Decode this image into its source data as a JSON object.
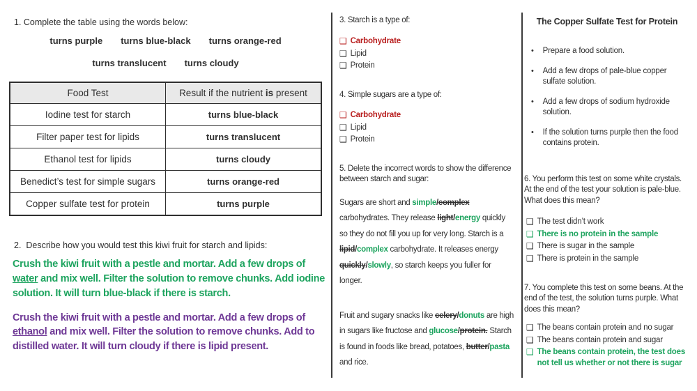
{
  "colors": {
    "green": "#1ea45f",
    "red": "#b92020",
    "purple": "#6f3996",
    "table_header_bg": "#e9e9e9"
  },
  "q1": {
    "prompt": "1. Complete the table using the words below:",
    "word_bank_line1": [
      "turns purple",
      "turns blue-black",
      "turns orange-red"
    ],
    "word_bank_line2": [
      "turns translucent",
      "turns cloudy"
    ],
    "table": {
      "header_col1": "Food Test",
      "header_col2_segments": [
        {
          "t": "Result if the nutrient "
        },
        {
          "t": "is",
          "s": "b"
        },
        {
          "t": " present"
        }
      ],
      "rows": [
        {
          "test": "Iodine test for starch",
          "result": "turns blue-black"
        },
        {
          "test": "Filter paper test for lipids",
          "result": "turns translucent"
        },
        {
          "test": "Ethanol test for lipids",
          "result": "turns cloudy"
        },
        {
          "test": "Benedict’s test for simple sugars",
          "result": "turns orange-red"
        },
        {
          "test": "Copper sulfate test for protein",
          "result": "turns purple"
        }
      ]
    }
  },
  "q2": {
    "prompt": "2.  Describe how you would test this kiwi fruit for starch and lipids:",
    "answer_starch_segments": [
      {
        "t": "Crush the kiwi fruit with a pestle and mortar. Add a few drops of "
      },
      {
        "t": "water",
        "s": "u"
      },
      {
        "t": " and mix well. Filter the solution to remove chunks. Add iodine solution. It will turn blue-black if there is starch."
      }
    ],
    "answer_lipid_segments": [
      {
        "t": "Crush the kiwi fruit with a pestle and mortar. Add a few drops of "
      },
      {
        "t": "ethanol",
        "s": "u"
      },
      {
        "t": " and mix well. Filter the solution to remove chunks. Add to distilled water. It will turn cloudy if there is lipid present."
      }
    ]
  },
  "q3": {
    "prompt": "3. Starch is a type of:",
    "options": [
      {
        "label": "Carbohydrate",
        "cls": "red"
      },
      {
        "label": "Lipid",
        "cls": ""
      },
      {
        "label": "Protein",
        "cls": ""
      }
    ]
  },
  "q4": {
    "prompt": "4. Simple sugars are a type of:",
    "options": [
      {
        "label": "Carbohydrate",
        "cls": "red"
      },
      {
        "label": "Lipid",
        "cls": ""
      },
      {
        "label": "Protein",
        "cls": ""
      }
    ]
  },
  "q5": {
    "prompt": "5. Delete the incorrect words to show the difference between starch and sugar:",
    "para1_segments": [
      {
        "t": "Sugars are short and "
      },
      {
        "t": "simple",
        "s": "g"
      },
      {
        "t": "/",
        "s": "b"
      },
      {
        "t": "complex",
        "s": "x"
      },
      {
        "t": " carbohydrates. They release "
      },
      {
        "t": "light",
        "s": "x"
      },
      {
        "t": "/",
        "s": "b"
      },
      {
        "t": "energy",
        "s": "g"
      },
      {
        "t": " quickly so they do not fill you up for very long. Starch is a "
      },
      {
        "t": "lipid",
        "s": "x"
      },
      {
        "t": "/",
        "s": "b"
      },
      {
        "t": "complex",
        "s": "g"
      },
      {
        "t": " carbohydrate. It releases energy "
      },
      {
        "t": "quickly",
        "s": "x"
      },
      {
        "t": "/",
        "s": "b"
      },
      {
        "t": "slowly",
        "s": "g"
      },
      {
        "t": ", so starch keeps you fuller for longer."
      }
    ],
    "para2_segments": [
      {
        "t": "Fruit and sugary snacks like "
      },
      {
        "t": "celery",
        "s": "x"
      },
      {
        "t": "/",
        "s": "b"
      },
      {
        "t": "donuts",
        "s": "g"
      },
      {
        "t": " are high in sugars like fructose and "
      },
      {
        "t": "glucose",
        "s": "g"
      },
      {
        "t": "/",
        "s": "b"
      },
      {
        "t": "protein.",
        "s": "x"
      },
      {
        "t": " Starch is found in foods like bread, potatoes, "
      },
      {
        "t": "butter",
        "s": "x"
      },
      {
        "t": "/",
        "s": "b"
      },
      {
        "t": "pasta",
        "s": "g"
      },
      {
        "t": " and rice."
      }
    ]
  },
  "protein_panel": {
    "title": "The Copper Sulfate Test for Protein",
    "bullets": [
      "Prepare a food solution.",
      "Add a few drops of pale-blue copper sulfate solution.",
      "Add a few drops of sodium hydroxide solution.",
      "If the solution turns purple then the food contains protein."
    ]
  },
  "q6": {
    "prompt": "6. You perform this test on some white crystals. At the end of the test your solution is pale-blue. What does this mean?",
    "options": [
      {
        "label": "The test didn’t work",
        "cls": ""
      },
      {
        "label": "There is no protein in the sample",
        "cls": "green"
      },
      {
        "label": "There is sugar in the sample",
        "cls": ""
      },
      {
        "label": "There is protein in the sample",
        "cls": ""
      }
    ]
  },
  "q7": {
    "prompt": "7. You complete this test on some beans. At the end of the test, the solution turns purple. What does this mean?",
    "options": [
      {
        "label": "The beans contain protein and no sugar",
        "cls": ""
      },
      {
        "label": "The beans contain protein and sugar",
        "cls": ""
      },
      {
        "label": "The beans contain protein, the test does not tell us whether or not there is sugar",
        "cls": "green"
      }
    ]
  },
  "icons": {
    "checkbox": "❑",
    "bullet": "•"
  }
}
